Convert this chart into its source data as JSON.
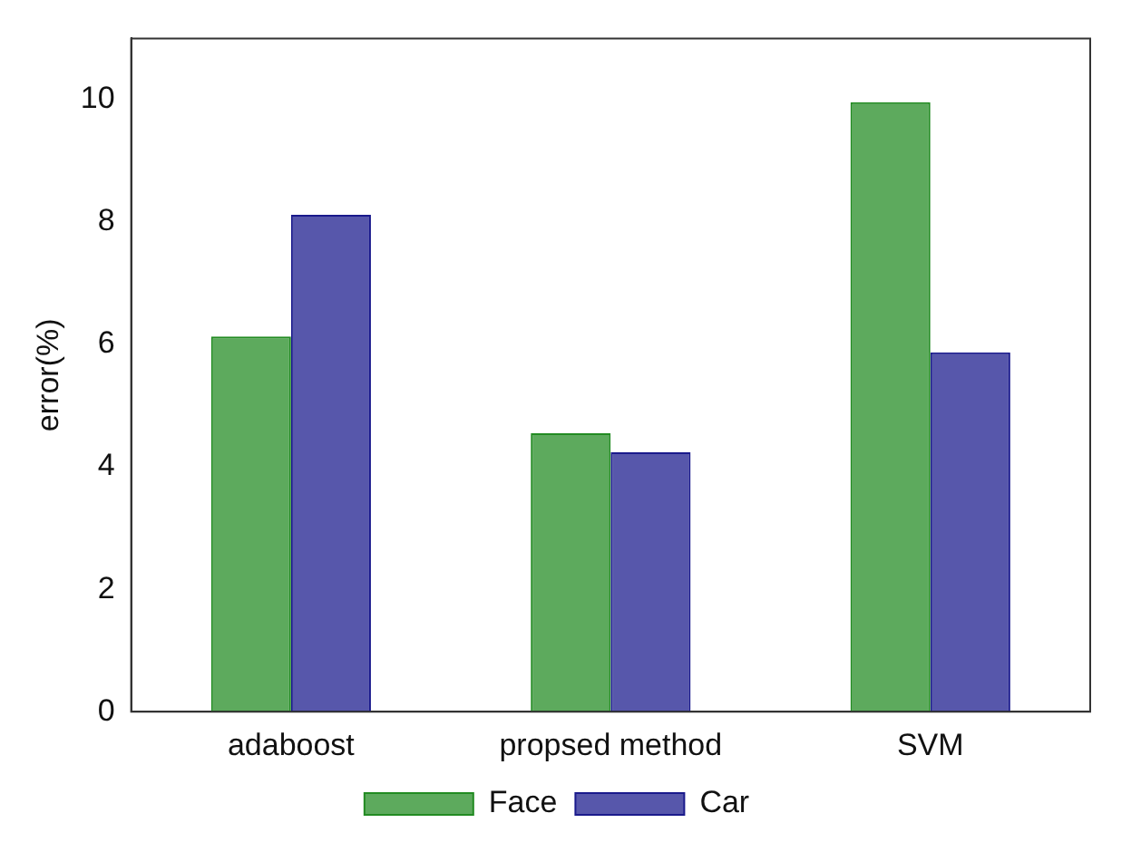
{
  "chart_data": {
    "type": "bar",
    "ylabel": "error(%)",
    "categories": [
      "adaboost",
      "propsed method",
      "SVM"
    ],
    "series": [
      {
        "name": "Face",
        "color": "#228b22",
        "values": [
          6.13,
          4.55,
          9.96
        ]
      },
      {
        "name": "Car",
        "color": "#1a1a8c",
        "values": [
          8.12,
          4.24,
          5.87
        ]
      }
    ],
    "ylim": [
      0,
      11
    ],
    "yticks": [
      0,
      2,
      4,
      6,
      8,
      10
    ],
    "grid": false,
    "legend": "bottom"
  }
}
